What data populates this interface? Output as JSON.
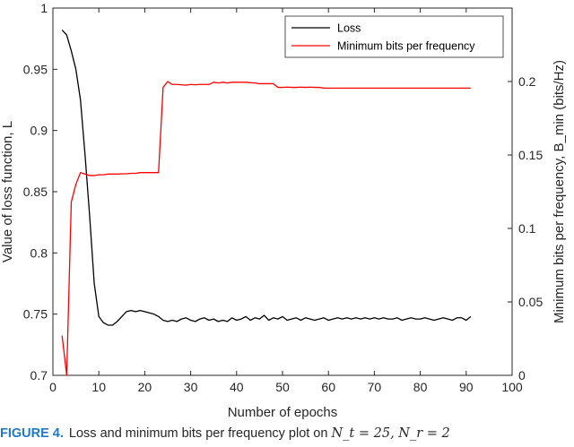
{
  "chart_data": {
    "type": "line",
    "xlabel": "Number of epochs",
    "ylabel_left": "Value of loss function, L",
    "ylabel_right": "Minimum bits per frequency, B_min (bits/Hz)",
    "xlim": [
      0,
      100
    ],
    "ylim_left": [
      0.7,
      1.0
    ],
    "ylim_right": [
      0,
      0.25
    ],
    "x_ticks": [
      "0",
      "10",
      "20",
      "30",
      "40",
      "50",
      "60",
      "70",
      "80",
      "90",
      "100"
    ],
    "y_ticks_left": [
      "0.7",
      "0.75",
      "0.8",
      "0.85",
      "0.9",
      "0.95",
      "1"
    ],
    "y_ticks_right": [
      "0",
      "0.05",
      "0.1",
      "0.15",
      "0.2"
    ],
    "legend_position": "top-right",
    "grid": false,
    "series": [
      {
        "name": "Loss",
        "axis": "left",
        "color": "#000000",
        "x": [
          2,
          3,
          4,
          5,
          6,
          7,
          8,
          9,
          10,
          11,
          12,
          13,
          14,
          15,
          16,
          17,
          18,
          19,
          20,
          21,
          22,
          23,
          24,
          25,
          26,
          27,
          28,
          29,
          30,
          31,
          32,
          33,
          34,
          35,
          36,
          37,
          38,
          39,
          40,
          41,
          42,
          43,
          44,
          45,
          46,
          47,
          48,
          49,
          50,
          51,
          52,
          53,
          54,
          55,
          56,
          57,
          58,
          59,
          60,
          61,
          62,
          63,
          64,
          65,
          66,
          67,
          68,
          69,
          70,
          71,
          72,
          73,
          74,
          75,
          76,
          77,
          78,
          79,
          80,
          81,
          82,
          83,
          84,
          85,
          86,
          87,
          88,
          89,
          90,
          91
        ],
        "y": [
          0.982,
          0.978,
          0.965,
          0.95,
          0.925,
          0.88,
          0.83,
          0.775,
          0.748,
          0.743,
          0.741,
          0.741,
          0.744,
          0.748,
          0.752,
          0.753,
          0.752,
          0.753,
          0.752,
          0.751,
          0.75,
          0.748,
          0.745,
          0.744,
          0.745,
          0.744,
          0.746,
          0.747,
          0.745,
          0.744,
          0.746,
          0.747,
          0.745,
          0.746,
          0.744,
          0.745,
          0.744,
          0.747,
          0.745,
          0.746,
          0.748,
          0.745,
          0.747,
          0.746,
          0.749,
          0.745,
          0.747,
          0.746,
          0.748,
          0.745,
          0.746,
          0.747,
          0.745,
          0.747,
          0.746,
          0.745,
          0.746,
          0.747,
          0.745,
          0.746,
          0.747,
          0.746,
          0.747,
          0.746,
          0.747,
          0.746,
          0.747,
          0.746,
          0.747,
          0.746,
          0.747,
          0.746,
          0.746,
          0.747,
          0.745,
          0.746,
          0.747,
          0.746,
          0.746,
          0.747,
          0.746,
          0.745,
          0.746,
          0.747,
          0.746,
          0.745,
          0.747,
          0.747,
          0.745,
          0.748
        ]
      },
      {
        "name": "Minimum bits per frequency",
        "axis": "right",
        "color": "#ff0000",
        "x": [
          2,
          3,
          4,
          5,
          6,
          7,
          8,
          9,
          10,
          11,
          12,
          13,
          14,
          15,
          16,
          17,
          18,
          19,
          20,
          21,
          22,
          23,
          24,
          25,
          26,
          27,
          28,
          29,
          30,
          31,
          32,
          33,
          34,
          35,
          36,
          37,
          38,
          39,
          40,
          41,
          42,
          43,
          44,
          45,
          46,
          47,
          48,
          49,
          50,
          51,
          52,
          53,
          54,
          55,
          56,
          57,
          58,
          59,
          60,
          61,
          62,
          63,
          64,
          65,
          66,
          67,
          68,
          69,
          70,
          71,
          72,
          73,
          74,
          75,
          76,
          77,
          78,
          79,
          80,
          81,
          82,
          83,
          84,
          85,
          86,
          87,
          88,
          89,
          90,
          91
        ],
        "y": [
          0.027,
          0.0,
          0.118,
          0.13,
          0.138,
          0.137,
          0.136,
          0.136,
          0.1365,
          0.1365,
          0.137,
          0.137,
          0.137,
          0.1372,
          0.1372,
          0.1375,
          0.1375,
          0.138,
          0.138,
          0.138,
          0.138,
          0.138,
          0.196,
          0.2,
          0.198,
          0.198,
          0.1978,
          0.1975,
          0.198,
          0.1978,
          0.198,
          0.198,
          0.198,
          0.1995,
          0.199,
          0.1995,
          0.199,
          0.1995,
          0.1995,
          0.1995,
          0.1995,
          0.1992,
          0.199,
          0.1985,
          0.1985,
          0.1985,
          0.1985,
          0.196,
          0.196,
          0.1962,
          0.196,
          0.196,
          0.1962,
          0.196,
          0.1962,
          0.196,
          0.196,
          0.1955,
          0.1955,
          0.1955,
          0.1955,
          0.1955,
          0.1955,
          0.1955,
          0.1955,
          0.1955,
          0.1955,
          0.1955,
          0.1955,
          0.1955,
          0.1955,
          0.1955,
          0.1955,
          0.1955,
          0.1955,
          0.1955,
          0.1955,
          0.1955,
          0.1955,
          0.1955,
          0.1955,
          0.1955,
          0.1955,
          0.1955,
          0.1955,
          0.1955,
          0.1955,
          0.1955,
          0.1955,
          0.1955
        ]
      }
    ]
  },
  "caption": {
    "figure_label": "FIGURE 4.",
    "text": "Loss and minimum bits per frequency plot on",
    "math": "N_t = 25, N_r = 2"
  },
  "colors": {
    "axis": "#262626",
    "caption_label": "#1f78c8"
  }
}
